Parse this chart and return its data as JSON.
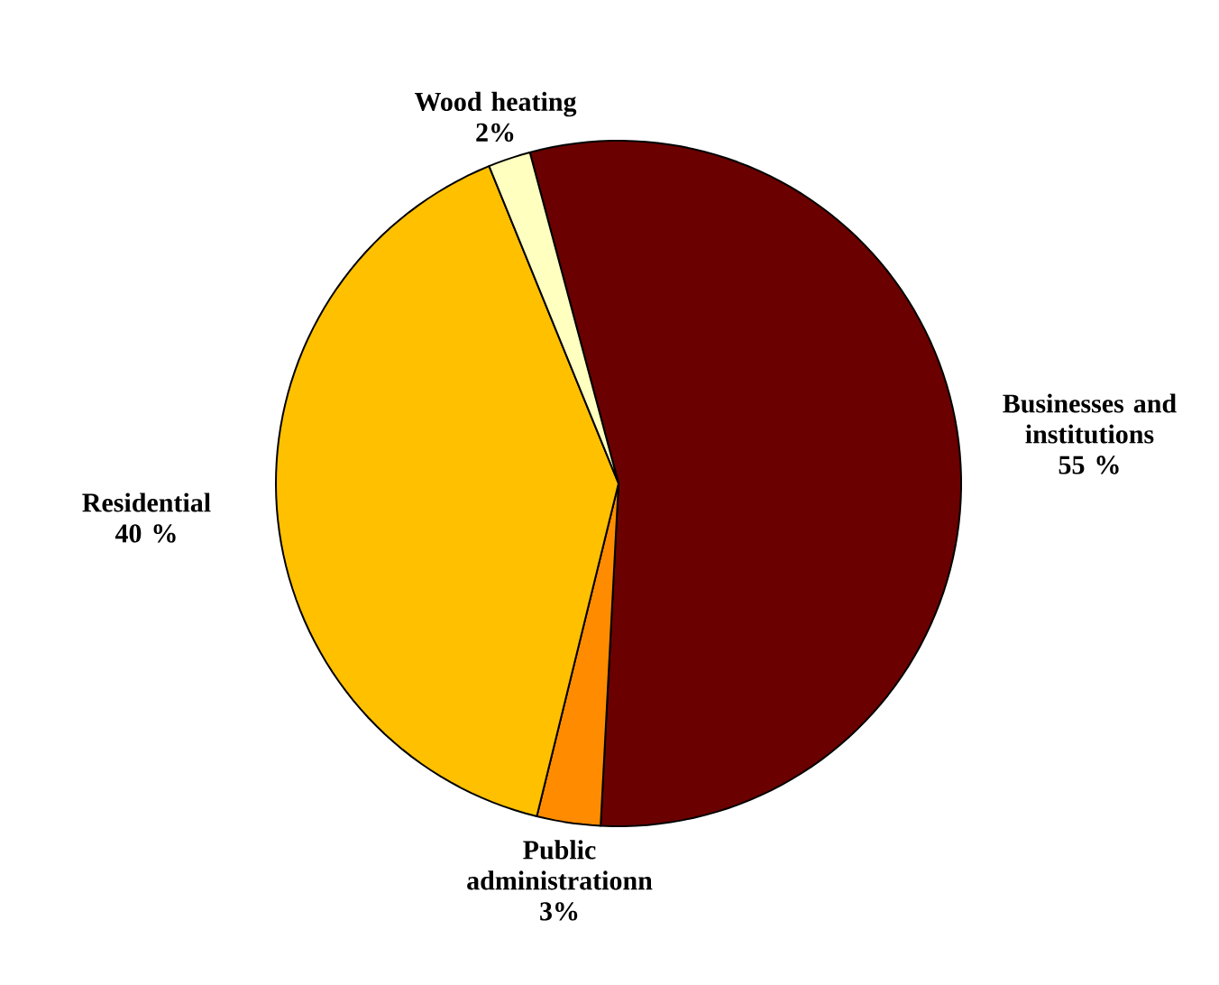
{
  "chart_data": {
    "type": "pie",
    "categories": [
      "Businesses and institutions",
      "Public administrationn",
      "Residential",
      "Wood heating"
    ],
    "values": [
      55,
      3,
      40,
      2
    ],
    "value_labels": [
      "55 %",
      "3%",
      "40 %",
      "2%"
    ],
    "colors": [
      "#6b0000",
      "#ff8c00",
      "#ffc000",
      "#ffffc0"
    ]
  }
}
